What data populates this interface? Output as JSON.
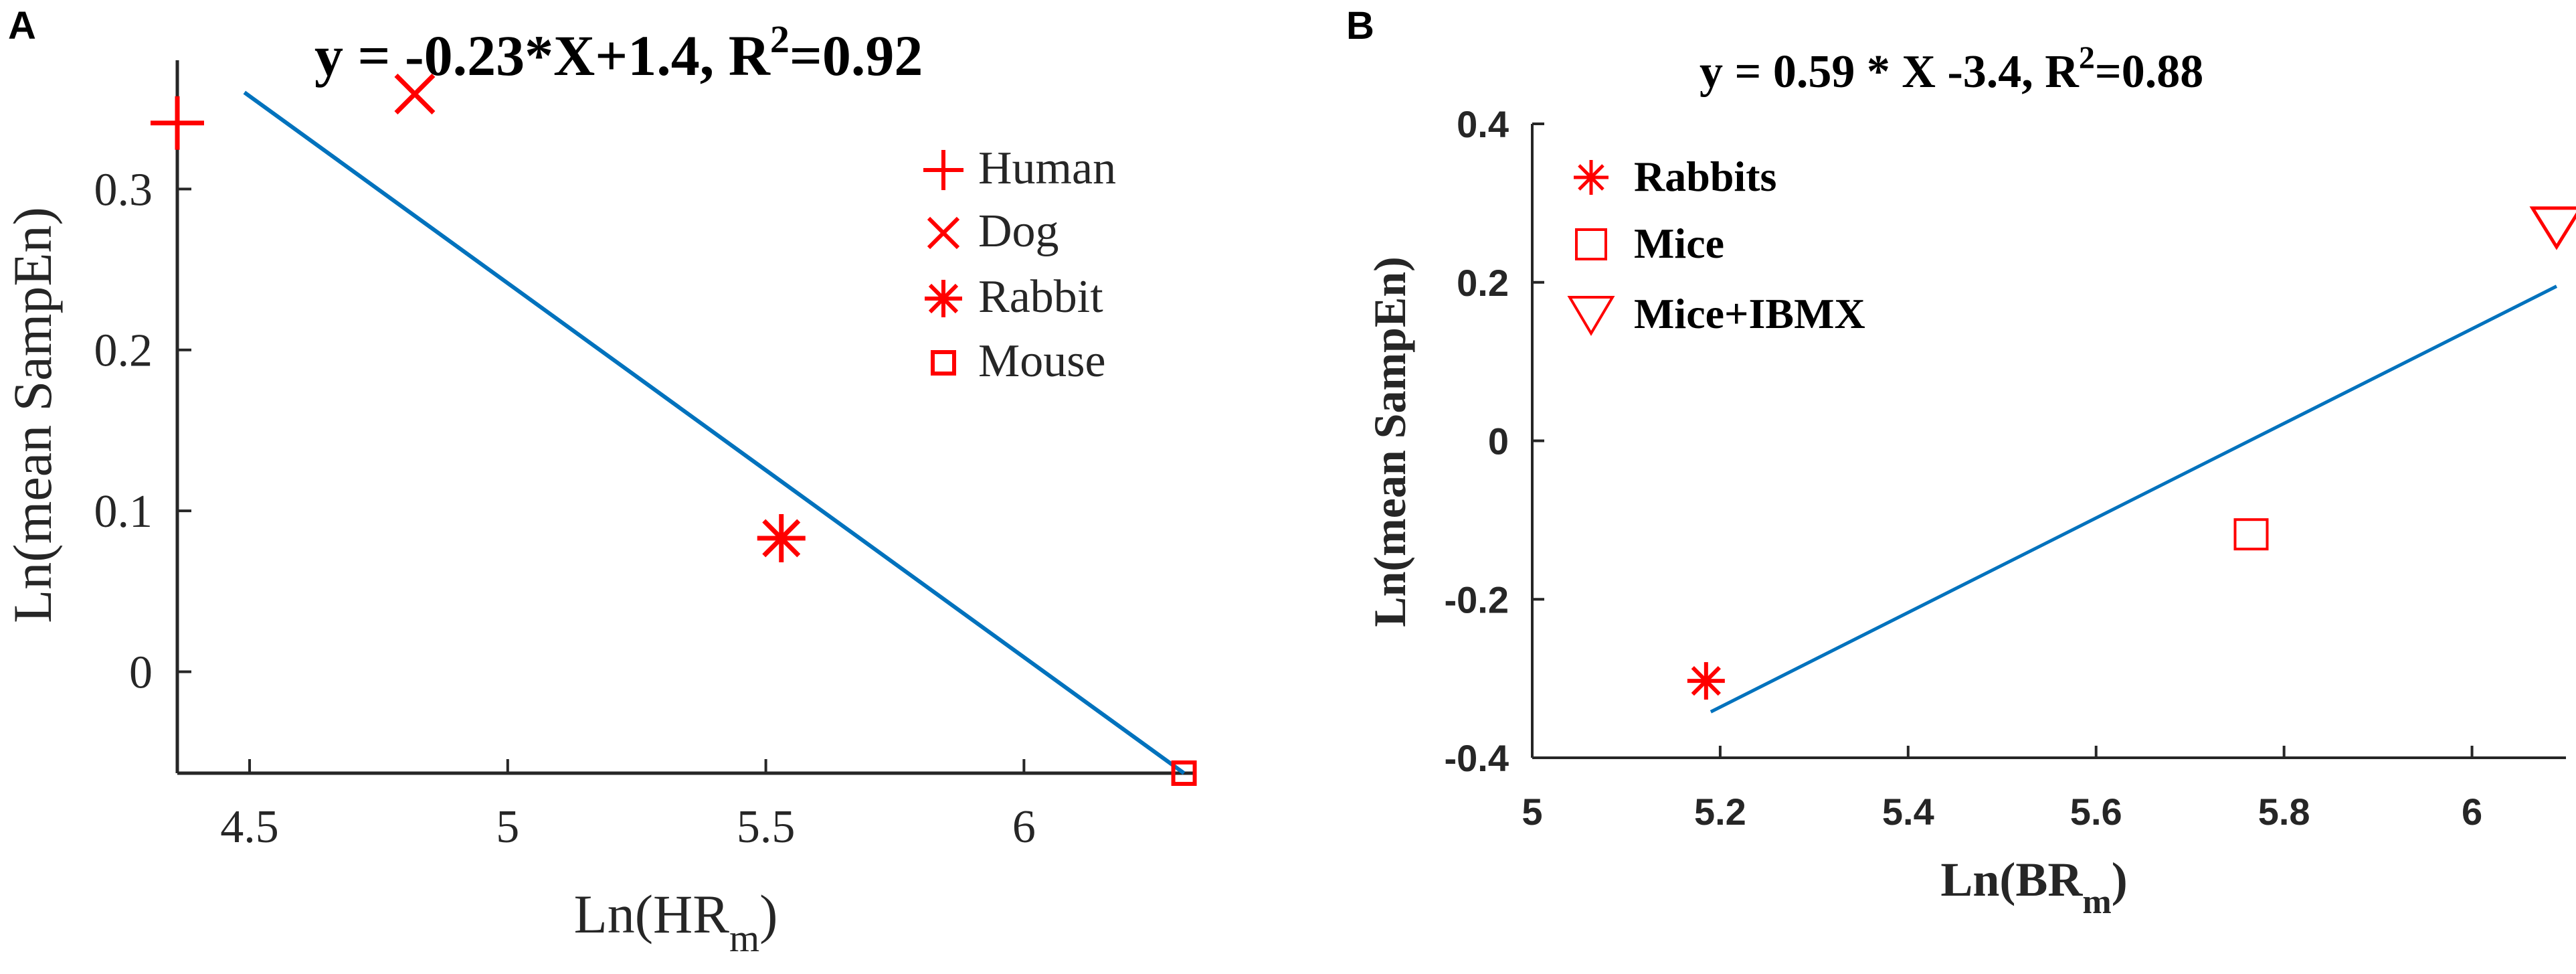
{
  "chart_data": [
    {
      "panel_label": "A",
      "type": "scatter",
      "title": {
        "main": "y = -0.23*X+1.4, R",
        "sup": "2",
        "rest": "=0.92"
      },
      "xlabel": {
        "main": "Ln(HR",
        "sub": "m",
        "rest": ")"
      },
      "ylabel": "Ln(mean SampEn)",
      "xlim": [
        4.36,
        6.33
      ],
      "ylim": [
        -0.063,
        0.38
      ],
      "xticks": [
        4.5,
        5,
        5.5,
        6
      ],
      "xtick_labels": [
        "4.5",
        "5",
        "5.5",
        "6"
      ],
      "yticks": [
        0,
        0.1,
        0.2,
        0.3
      ],
      "ytick_labels": [
        "0",
        "0.1",
        "0.2",
        "0.3"
      ],
      "series": [
        {
          "name": "Human",
          "marker": "plus",
          "x": 4.36,
          "y": 0.341
        },
        {
          "name": "Dog",
          "marker": "x",
          "x": 4.82,
          "y": 0.359
        },
        {
          "name": "Rabbit",
          "marker": "asterisk",
          "x": 5.53,
          "y": 0.083
        },
        {
          "name": "Mouse",
          "marker": "square",
          "x": 6.31,
          "y": -0.063
        }
      ],
      "fit_line": {
        "x": [
          4.49,
          6.31
        ],
        "y": [
          0.36,
          -0.063
        ]
      },
      "legend": [
        "Human",
        "Dog",
        "Rabbit",
        "Mouse"
      ],
      "legend_position": "top-right",
      "grid": false
    },
    {
      "panel_label": "B",
      "type": "scatter",
      "title": {
        "main": "y = 0.59 * X -3.4,  R",
        "sup": "2",
        "rest": "=0.88"
      },
      "xlabel": {
        "main": "Ln(BR",
        "sub": "m",
        "rest": ")"
      },
      "ylabel": "Ln(mean SampEn)",
      "xlim": [
        5,
        6.1
      ],
      "ylim": [
        -0.4,
        0.4
      ],
      "xticks": [
        5,
        5.2,
        5.4,
        5.6,
        5.8,
        6
      ],
      "xtick_labels": [
        "5",
        "5.2",
        "5.4",
        "5.6",
        "5.8",
        "6"
      ],
      "yticks": [
        -0.4,
        -0.2,
        0,
        0.2,
        0.4
      ],
      "ytick_labels": [
        "-0.4",
        "-0.2",
        "0",
        "0.2",
        "0.4"
      ],
      "series": [
        {
          "name": "Rabbits",
          "marker": "asterisk",
          "x": 5.185,
          "y": -0.303
        },
        {
          "name": "Mice",
          "marker": "square",
          "x": 5.765,
          "y": -0.118
        },
        {
          "name": "Mice+IBMX",
          "marker": "triangle-down",
          "x": 6.09,
          "y": 0.27
        }
      ],
      "fit_line": {
        "x": [
          5.19,
          6.09
        ],
        "y": [
          -0.342,
          0.195
        ]
      },
      "legend": [
        "Rabbits",
        "Mice",
        "Mice+IBMX"
      ],
      "legend_position": "top-left",
      "grid": false
    }
  ],
  "colors": {
    "marker": "#ff0000",
    "line": "#0072bd",
    "axis": "#262626",
    "text": "#000000"
  }
}
